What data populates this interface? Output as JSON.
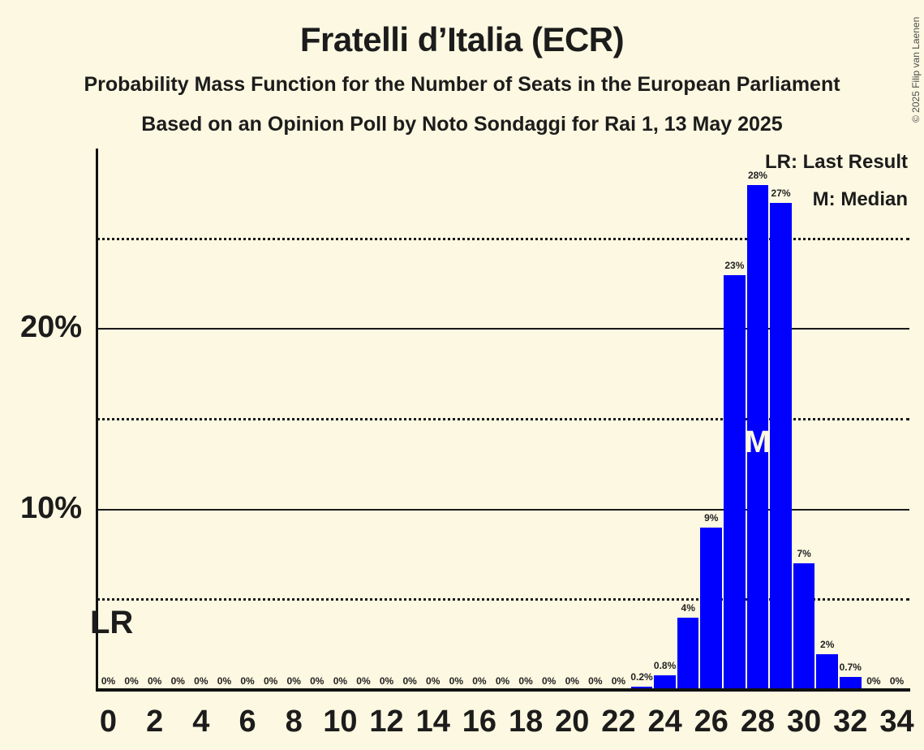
{
  "copyright": "© 2025 Filip van Laenen",
  "colors": {
    "background": "#FCF8E1",
    "bar": "#0000FF",
    "text": "#1C1C1C",
    "axis": "#111111",
    "copyright_text": "#4D4D4D"
  },
  "chart_data": {
    "type": "bar",
    "title": "Fratelli d’Italia (ECR)",
    "subtitle": "Probability Mass Function for the Number of Seats in the European Parliament",
    "source_line": "Based on an Opinion Poll by Noto Sondaggi for Rai 1, 13 May 2025",
    "xlabel": "",
    "ylabel": "",
    "x": [
      0,
      1,
      2,
      3,
      4,
      5,
      6,
      7,
      8,
      9,
      10,
      11,
      12,
      13,
      14,
      15,
      16,
      17,
      18,
      19,
      20,
      21,
      22,
      23,
      24,
      25,
      26,
      27,
      28,
      29,
      30,
      31,
      32,
      33,
      34
    ],
    "values": [
      0,
      0,
      0,
      0,
      0,
      0,
      0,
      0,
      0,
      0,
      0,
      0,
      0,
      0,
      0,
      0,
      0,
      0,
      0,
      0,
      0,
      0,
      0,
      0.2,
      0.8,
      4,
      9,
      23,
      28,
      27,
      7,
      2,
      0.7,
      0,
      0
    ],
    "bar_labels": [
      "0%",
      "0%",
      "0%",
      "0%",
      "0%",
      "0%",
      "0%",
      "0%",
      "0%",
      "0%",
      "0%",
      "0%",
      "0%",
      "0%",
      "0%",
      "0%",
      "0%",
      "0%",
      "0%",
      "0%",
      "0%",
      "0%",
      "0%",
      "0.2%",
      "0.8%",
      "4%",
      "9%",
      "23%",
      "28%",
      "27%",
      "7%",
      "2%",
      "0.7%",
      "0%",
      "0%"
    ],
    "x_tick_labels": [
      "0",
      "2",
      "4",
      "6",
      "8",
      "10",
      "12",
      "14",
      "16",
      "18",
      "20",
      "22",
      "24",
      "26",
      "28",
      "30",
      "32",
      "34"
    ],
    "ylim": [
      0,
      30
    ],
    "y_solid_gridlines_pct": [
      10,
      20
    ],
    "y_dotted_gridlines_pct": [
      5,
      15,
      25
    ],
    "y_axis_labels": [
      {
        "pct": 10,
        "label": "10%"
      },
      {
        "pct": 20,
        "label": "20%"
      }
    ],
    "grid": "horizontal",
    "legend_position": "top-right",
    "legend": {
      "lr_label": "LR: Last Result",
      "m_label": "M: Median"
    },
    "annotations": {
      "lr": {
        "text": "LR",
        "meaning": "Last Result",
        "position": "left-edge-above-x-axis"
      },
      "m": {
        "text": "M",
        "meaning": "Median",
        "seat": 28
      }
    }
  }
}
